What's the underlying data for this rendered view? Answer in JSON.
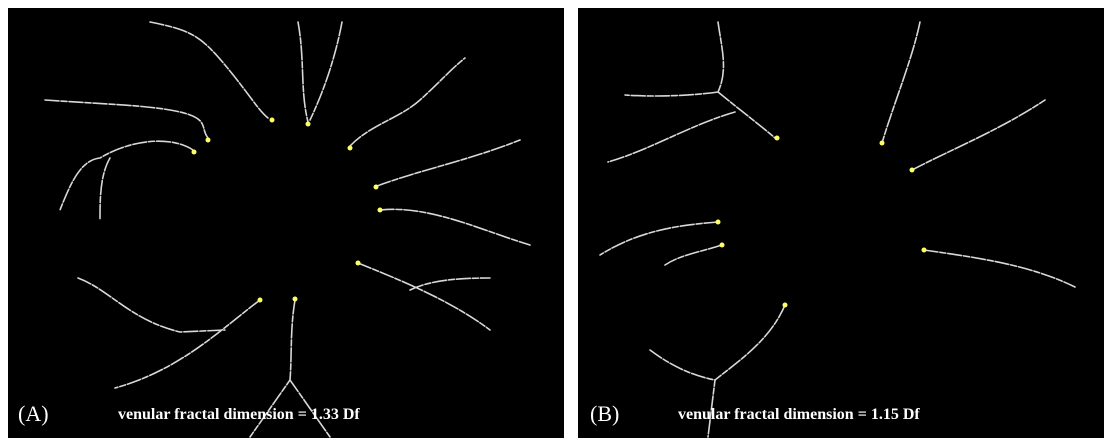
{
  "panels": [
    {
      "label": "(A)",
      "caption": "venular fractal dimension = 1.33 Df"
    },
    {
      "label": "(B)",
      "caption": "venular fractal dimension = 1.15 Df"
    }
  ]
}
